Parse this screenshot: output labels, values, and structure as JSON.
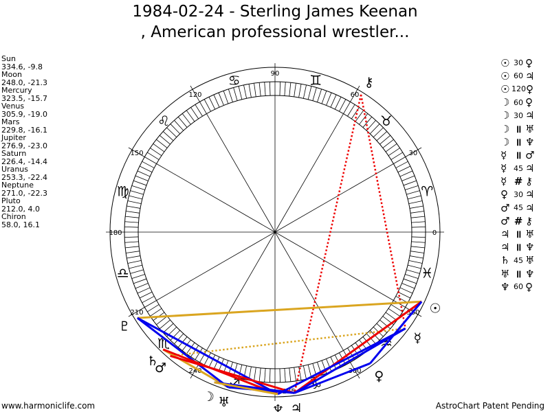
{
  "title_line1": "1984-02-24 - Sterling James Keenan",
  "title_line2": ", American professional wrestler...",
  "planets": [
    {
      "name": "Sun",
      "coords": "334.6, -9.8"
    },
    {
      "name": "Moon",
      "coords": "248.0, -21.3"
    },
    {
      "name": "Mercury",
      "coords": "323.5, -15.7"
    },
    {
      "name": "Venus",
      "coords": "305.9, -19.0"
    },
    {
      "name": "Mars",
      "coords": "229.8, -16.1"
    },
    {
      "name": "Jupiter",
      "coords": "276.9, -23.0"
    },
    {
      "name": "Saturn",
      "coords": "226.4, -14.4"
    },
    {
      "name": "Uranus",
      "coords": "253.3, -22.4"
    },
    {
      "name": "Neptune",
      "coords": "271.0, -22.3"
    },
    {
      "name": "Pluto",
      "coords": "212.0, 4.0"
    },
    {
      "name": "Chiron",
      "coords": "58.0, 16.1"
    }
  ],
  "aspects": [
    {
      "p1": "☉",
      "value": "30",
      "p2": "♀"
    },
    {
      "p1": "☉",
      "value": "60",
      "p2": "♃"
    },
    {
      "p1": "☉",
      "value": "120",
      "p2": "♀"
    },
    {
      "p1": "☽",
      "value": "60",
      "p2": "♀"
    },
    {
      "p1": "☽",
      "value": "30",
      "p2": "♃"
    },
    {
      "p1": "☽",
      "value": "॥",
      "p2": "♅"
    },
    {
      "p1": "☽",
      "value": "॥",
      "p2": "♆"
    },
    {
      "p1": "☿",
      "value": "॥",
      "p2": "♂"
    },
    {
      "p1": "☿",
      "value": "45",
      "p2": "♃"
    },
    {
      "p1": "☿",
      "value": "#",
      "p2": "⚷"
    },
    {
      "p1": "♀",
      "value": "30",
      "p2": "♃"
    },
    {
      "p1": "♂",
      "value": "45",
      "p2": "♃"
    },
    {
      "p1": "♂",
      "value": "#",
      "p2": "⚷"
    },
    {
      "p1": "♃",
      "value": "॥",
      "p2": "♅"
    },
    {
      "p1": "♃",
      "value": "॥",
      "p2": "♆"
    },
    {
      "p1": "♄",
      "value": "45",
      "p2": "♅"
    },
    {
      "p1": "♅",
      "value": "॥",
      "p2": "♆"
    },
    {
      "p1": "♆",
      "value": "60",
      "p2": "♀"
    }
  ],
  "degree_labels": [
    {
      "deg": 0,
      "text": "0"
    },
    {
      "deg": 30,
      "text": "30"
    },
    {
      "deg": 60,
      "text": "60"
    },
    {
      "deg": 90,
      "text": "90"
    },
    {
      "deg": 120,
      "text": "120"
    },
    {
      "deg": 150,
      "text": "150"
    },
    {
      "deg": 180,
      "text": "180"
    },
    {
      "deg": 210,
      "text": "210"
    },
    {
      "deg": 240,
      "text": "240"
    },
    {
      "deg": 275,
      "text": "275"
    },
    {
      "deg": 300,
      "text": "300"
    },
    {
      "deg": 330,
      "text": "330"
    }
  ],
  "zodiac_signs": [
    {
      "deg": 15,
      "glyph": "♈"
    },
    {
      "deg": 45,
      "glyph": "♉"
    },
    {
      "deg": 75,
      "glyph": "♊"
    },
    {
      "deg": 105,
      "glyph": "♋"
    },
    {
      "deg": 135,
      "glyph": "♌"
    },
    {
      "deg": 165,
      "glyph": "♍"
    },
    {
      "deg": 195,
      "glyph": "♎"
    },
    {
      "deg": 225,
      "glyph": "♏"
    },
    {
      "deg": 255,
      "glyph": "♐"
    },
    {
      "deg": 285,
      "glyph": "♑"
    },
    {
      "deg": 315,
      "glyph": "♒"
    },
    {
      "deg": 345,
      "glyph": "♓"
    }
  ],
  "planet_glyphs": [
    {
      "name": "sun",
      "glyph": "☉",
      "deg": 334.6
    },
    {
      "name": "moon",
      "glyph": "☽",
      "deg": 248.0
    },
    {
      "name": "mercury",
      "glyph": "☿",
      "deg": 323.5
    },
    {
      "name": "venus",
      "glyph": "♀",
      "deg": 305.9
    },
    {
      "name": "mars",
      "glyph": "♂",
      "deg": 229.8
    },
    {
      "name": "jupiter",
      "glyph": "♃",
      "deg": 276.9
    },
    {
      "name": "saturn",
      "glyph": "♄",
      "deg": 226.4
    },
    {
      "name": "uranus",
      "glyph": "♅",
      "deg": 253.3
    },
    {
      "name": "neptune",
      "glyph": "♆",
      "deg": 271.0
    },
    {
      "name": "pluto",
      "glyph": "♇",
      "deg": 212.0
    },
    {
      "name": "chiron",
      "glyph": "⚷",
      "deg": 58.0
    }
  ],
  "aspect_lines": [
    {
      "a": 58.0,
      "b": 276.9,
      "color": "#ee0000",
      "style": "dotted"
    },
    {
      "a": 58.0,
      "b": 323.5,
      "color": "#ee0000",
      "style": "dotted"
    },
    {
      "a": 212.0,
      "b": 334.6,
      "color": "#daa520",
      "style": "solid"
    },
    {
      "a": 229.8,
      "b": 323.5,
      "color": "#daa520",
      "style": "dotted"
    },
    {
      "a": 226.4,
      "b": 253.3,
      "color": "#daa520",
      "style": "solid"
    },
    {
      "a": 212.0,
      "b": 271.0,
      "color": "#0000ee",
      "style": "solid"
    },
    {
      "a": 212.0,
      "b": 253.3,
      "color": "#0000ee",
      "style": "solid"
    },
    {
      "a": 229.8,
      "b": 276.9,
      "color": "#ee0000",
      "style": "solid"
    },
    {
      "a": 226.4,
      "b": 271.0,
      "color": "#ee0000",
      "style": "solid"
    },
    {
      "a": 248.0,
      "b": 276.9,
      "color": "#0000ee",
      "style": "solid"
    },
    {
      "a": 253.3,
      "b": 276.9,
      "color": "#0000ee",
      "style": "solid"
    },
    {
      "a": 276.9,
      "b": 305.9,
      "color": "#0000ee",
      "style": "solid"
    },
    {
      "a": 276.9,
      "b": 334.6,
      "color": "#ee0000",
      "style": "solid"
    },
    {
      "a": 305.9,
      "b": 334.6,
      "color": "#0000ee",
      "style": "solid"
    },
    {
      "a": 276.9,
      "b": 323.5,
      "color": "#0000ee",
      "style": "solid"
    },
    {
      "a": 271.0,
      "b": 323.5,
      "color": "#0000ee",
      "style": "solid"
    },
    {
      "a": 248.0,
      "b": 271.0,
      "color": "#daa520",
      "style": "solid"
    }
  ],
  "footer_left": "www.harmoniclife.com",
  "footer_right": "AstroChart Patent Pending"
}
